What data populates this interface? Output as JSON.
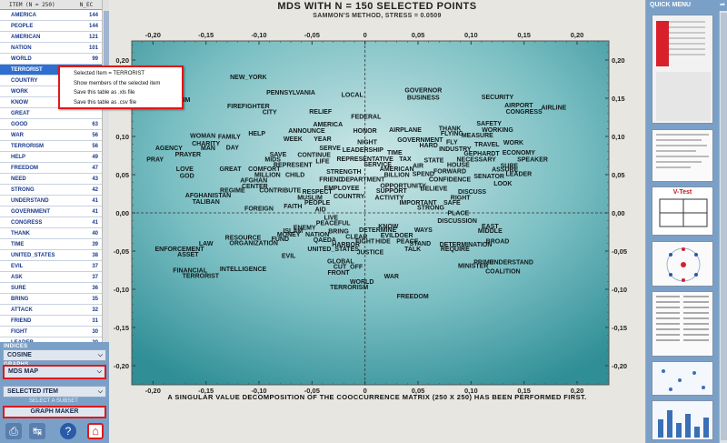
{
  "table": {
    "header_item": "ITEM (N = 250)",
    "header_n": "N_EC",
    "rows": [
      {
        "word": "AMERICA",
        "n": "144"
      },
      {
        "word": "PEOPLE",
        "n": "144"
      },
      {
        "word": "AMERICAN",
        "n": "121"
      },
      {
        "word": "NATION",
        "n": "101"
      },
      {
        "word": "WORLD",
        "n": "99"
      },
      {
        "word": "TERRORIST",
        "n": ""
      },
      {
        "word": "COUNTRY",
        "n": ""
      },
      {
        "word": "WORK",
        "n": ""
      },
      {
        "word": "KNOW",
        "n": ""
      },
      {
        "word": "GREAT",
        "n": ""
      },
      {
        "word": "GOOD",
        "n": "63"
      },
      {
        "word": "WAR",
        "n": "56"
      },
      {
        "word": "TERRORISM",
        "n": "56"
      },
      {
        "word": "HELP",
        "n": "49"
      },
      {
        "word": "FREEDOM",
        "n": "47"
      },
      {
        "word": "NEED",
        "n": "43"
      },
      {
        "word": "STRONG",
        "n": "42"
      },
      {
        "word": "UNDERSTAND",
        "n": "41"
      },
      {
        "word": "GOVERNMENT",
        "n": "41"
      },
      {
        "word": "CONGRESS",
        "n": "41"
      },
      {
        "word": "THANK",
        "n": "40"
      },
      {
        "word": "TIME",
        "n": "39"
      },
      {
        "word": "UNITED_STATES",
        "n": "38"
      },
      {
        "word": "EVIL",
        "n": "37"
      },
      {
        "word": "ASK",
        "n": "37"
      },
      {
        "word": "SURE",
        "n": "36"
      },
      {
        "word": "BRING",
        "n": "35"
      },
      {
        "word": "ATTACK",
        "n": "32"
      },
      {
        "word": "FRIEND",
        "n": "31"
      },
      {
        "word": "FIGHT",
        "n": "30"
      },
      {
        "word": "LEADER",
        "n": "30"
      },
      {
        "word": "CITIZEN",
        "n": "29"
      }
    ]
  },
  "context_menu": {
    "items": [
      "Selected Item = TERRORIST",
      "Show members of the selected item",
      "Save this table as .xls file",
      "Save this table as .csv file"
    ]
  },
  "controls": {
    "indices_label": "INDICES",
    "index_value": "COSINE",
    "graph_label": "GRAPHS",
    "graph_value": "MDS MAP",
    "items_label": "ITEMS",
    "items_value": "SELECTED ITEM",
    "select_subset_label": "SELECT A SUBSET",
    "graph_maker": "GRAPH MAKER"
  },
  "chart_header": {
    "title": "MDS WITH N = 150 SELECTED POINTS",
    "subtitle": "SAMMON'S METHOD,  STRESS = 0.0509"
  },
  "footnote": "A SINGULAR VALUE DECOMPOSITION OF THE COOCCURRENCE MATRIX (250 X 250) HAS BEEN PERFORMED FIRST.",
  "right_panel": {
    "title": "QUICK MENU",
    "vtest_label": "V-Test"
  },
  "colors": {
    "plot_bg_center": "#cfe8e8",
    "plot_bg_edge": "#2f8e96",
    "panel_blue": "#7aa0c8",
    "highlight_red": "#e01818",
    "selected_row": "#2f6fd0"
  },
  "chart_data": {
    "type": "scatter",
    "title": "MDS WITH N = 150 SELECTED POINTS",
    "xlim": [
      -0.22,
      0.23
    ],
    "ylim": [
      -0.225,
      0.225
    ],
    "xticks": [
      "-0,20",
      "-0,15",
      "-0,10",
      "-0,05",
      "0",
      "0,05",
      "0,10",
      "0,15",
      "0,20"
    ],
    "xtick_values": [
      -0.2,
      -0.15,
      -0.1,
      -0.05,
      0,
      0.05,
      0.1,
      0.15,
      0.2
    ],
    "yticks": [
      "0,20",
      "0,15",
      "0,10",
      "0,05",
      "0,00",
      "-0,05",
      "-0,10",
      "-0,15",
      "-0,20"
    ],
    "ytick_values": [
      0.2,
      0.15,
      0.1,
      0.05,
      0,
      -0.05,
      -0.1,
      -0.15,
      -0.2
    ],
    "points": [
      {
        "label": "NEW_YORK",
        "x": -0.11,
        "y": 0.175
      },
      {
        "label": "PENNSYLVANIA",
        "x": -0.07,
        "y": 0.155
      },
      {
        "label": "LOCAL",
        "x": -0.012,
        "y": 0.152
      },
      {
        "label": "GOVERNOR",
        "x": 0.055,
        "y": 0.158
      },
      {
        "label": "BUSINESS",
        "x": 0.055,
        "y": 0.148
      },
      {
        "label": "SECURITY",
        "x": 0.125,
        "y": 0.149
      },
      {
        "label": "AIRPORT",
        "x": 0.145,
        "y": 0.138
      },
      {
        "label": "AIRLINE",
        "x": 0.178,
        "y": 0.135
      },
      {
        "label": "CONGRESS",
        "x": 0.15,
        "y": 0.13
      },
      {
        "label": "VICTIM",
        "x": -0.175,
        "y": 0.145
      },
      {
        "label": "FIREFIGHTER",
        "x": -0.11,
        "y": 0.137
      },
      {
        "label": "CITY",
        "x": -0.09,
        "y": 0.129
      },
      {
        "label": "RELIEF",
        "x": -0.042,
        "y": 0.13
      },
      {
        "label": "FEDERAL",
        "x": 0.001,
        "y": 0.123
      },
      {
        "label": "SAFETY",
        "x": 0.117,
        "y": 0.114
      },
      {
        "label": "AMERICA",
        "x": -0.035,
        "y": 0.113
      },
      {
        "label": "THANK",
        "x": 0.08,
        "y": 0.108
      },
      {
        "label": "WORKING",
        "x": 0.125,
        "y": 0.106
      },
      {
        "label": "ANNOUNCE",
        "x": -0.055,
        "y": 0.105
      },
      {
        "label": "HONOR",
        "x": 0.0,
        "y": 0.105
      },
      {
        "label": "AIRPLANE",
        "x": 0.038,
        "y": 0.106
      },
      {
        "label": "FLYING",
        "x": 0.082,
        "y": 0.101
      },
      {
        "label": "MEASURE",
        "x": 0.106,
        "y": 0.099
      },
      {
        "label": "HELP",
        "x": -0.102,
        "y": 0.101
      },
      {
        "label": "FAMILY",
        "x": -0.128,
        "y": 0.097
      },
      {
        "label": "WOMAN",
        "x": -0.153,
        "y": 0.098
      },
      {
        "label": "WEEK",
        "x": -0.068,
        "y": 0.094
      },
      {
        "label": "YEAR",
        "x": -0.04,
        "y": 0.094
      },
      {
        "label": "GOVERNMENT",
        "x": 0.052,
        "y": 0.093
      },
      {
        "label": "FLY",
        "x": 0.082,
        "y": 0.09
      },
      {
        "label": "NIGHT",
        "x": 0.002,
        "y": 0.09
      },
      {
        "label": "HARD",
        "x": 0.06,
        "y": 0.086
      },
      {
        "label": "TRAVEL",
        "x": 0.115,
        "y": 0.087
      },
      {
        "label": "WORK",
        "x": 0.14,
        "y": 0.089
      },
      {
        "label": "INDUSTRY",
        "x": 0.085,
        "y": 0.081
      },
      {
        "label": "CHARITY",
        "x": -0.15,
        "y": 0.088
      },
      {
        "label": "AGENCY",
        "x": -0.185,
        "y": 0.082
      },
      {
        "label": "MAN",
        "x": -0.148,
        "y": 0.082
      },
      {
        "label": "DAY",
        "x": -0.125,
        "y": 0.083
      },
      {
        "label": "SERVE",
        "x": -0.033,
        "y": 0.082
      },
      {
        "label": "LEADERSHIP",
        "x": -0.002,
        "y": 0.08
      },
      {
        "label": "TIME",
        "x": 0.028,
        "y": 0.076
      },
      {
        "label": "GEPHARDT",
        "x": 0.11,
        "y": 0.075
      },
      {
        "label": "ECONOMY",
        "x": 0.145,
        "y": 0.076
      },
      {
        "label": "PRAYER",
        "x": -0.167,
        "y": 0.074
      },
      {
        "label": "SAVE",
        "x": -0.082,
        "y": 0.074
      },
      {
        "label": "CONTINUE",
        "x": -0.048,
        "y": 0.073
      },
      {
        "label": "REPRESENTATIVE",
        "x": 0.0,
        "y": 0.068
      },
      {
        "label": "TAX",
        "x": 0.038,
        "y": 0.068
      },
      {
        "label": "STATE",
        "x": 0.065,
        "y": 0.066
      },
      {
        "label": "NECESSARY",
        "x": 0.105,
        "y": 0.067
      },
      {
        "label": "SPEAKER",
        "x": 0.158,
        "y": 0.067
      },
      {
        "label": "PRAY",
        "x": -0.198,
        "y": 0.067
      },
      {
        "label": "MIDS",
        "x": -0.087,
        "y": 0.067
      },
      {
        "label": "LIFE",
        "x": -0.04,
        "y": 0.065
      },
      {
        "label": "SERVICE",
        "x": 0.012,
        "y": 0.061
      },
      {
        "label": "AIR",
        "x": 0.05,
        "y": 0.059
      },
      {
        "label": "HOUSE",
        "x": 0.088,
        "y": 0.06
      },
      {
        "label": "SURE",
        "x": 0.136,
        "y": 0.059
      },
      {
        "label": "REPRESENT",
        "x": -0.068,
        "y": 0.06
      },
      {
        "label": "COMFORT",
        "x": -0.095,
        "y": 0.055
      },
      {
        "label": "AMERICAN",
        "x": 0.03,
        "y": 0.055
      },
      {
        "label": "FORWARD",
        "x": 0.08,
        "y": 0.052
      },
      {
        "label": "ASSURE",
        "x": 0.132,
        "y": 0.054
      },
      {
        "label": "LOVE",
        "x": -0.17,
        "y": 0.055
      },
      {
        "label": "GREAT",
        "x": -0.127,
        "y": 0.055
      },
      {
        "label": "STRENGTH",
        "x": -0.02,
        "y": 0.051
      },
      {
        "label": "SPEND",
        "x": 0.055,
        "y": 0.048
      },
      {
        "label": "BILLION",
        "x": 0.03,
        "y": 0.047
      },
      {
        "label": "LEADER",
        "x": 0.145,
        "y": 0.048
      },
      {
        "label": "GOD",
        "x": -0.168,
        "y": 0.046
      },
      {
        "label": "MILLION",
        "x": -0.092,
        "y": 0.047
      },
      {
        "label": "CHILD",
        "x": -0.066,
        "y": 0.047
      },
      {
        "label": "SENATOR",
        "x": 0.117,
        "y": 0.045
      },
      {
        "label": "FRIEND",
        "x": -0.032,
        "y": 0.041
      },
      {
        "label": "DEPARTMENT",
        "x": -0.002,
        "y": 0.041
      },
      {
        "label": "CONFIDENCE",
        "x": 0.08,
        "y": 0.041
      },
      {
        "label": "AFGHAN",
        "x": -0.105,
        "y": 0.04
      },
      {
        "label": "LOOK",
        "x": 0.13,
        "y": 0.036
      },
      {
        "label": "CENTER",
        "x": -0.104,
        "y": 0.032
      },
      {
        "label": "OPPORTUNITY",
        "x": 0.036,
        "y": 0.033
      },
      {
        "label": "EMPLOYEE",
        "x": -0.022,
        "y": 0.03
      },
      {
        "label": "BELIEVE",
        "x": 0.065,
        "y": 0.029
      },
      {
        "label": "REGIME",
        "x": -0.125,
        "y": 0.027
      },
      {
        "label": "CONTRIBUTE",
        "x": -0.08,
        "y": 0.027
      },
      {
        "label": "RESPECT",
        "x": -0.045,
        "y": 0.025
      },
      {
        "label": "SUPPORT",
        "x": 0.025,
        "y": 0.026
      },
      {
        "label": "DISCUSS",
        "x": 0.101,
        "y": 0.025
      },
      {
        "label": "AFGHANISTAN",
        "x": -0.148,
        "y": 0.02
      },
      {
        "label": "MUSLIM",
        "x": -0.052,
        "y": 0.017
      },
      {
        "label": "COUNTRY",
        "x": -0.015,
        "y": 0.019
      },
      {
        "label": "ACTIVITY",
        "x": 0.023,
        "y": 0.017
      },
      {
        "label": "RIGHT",
        "x": 0.09,
        "y": 0.017
      },
      {
        "label": "TALIBAN",
        "x": -0.15,
        "y": 0.012
      },
      {
        "label": "PEOPLE",
        "x": -0.045,
        "y": 0.011
      },
      {
        "label": "IMPORTANT",
        "x": 0.05,
        "y": 0.011
      },
      {
        "label": "SAFE",
        "x": 0.082,
        "y": 0.011
      },
      {
        "label": "FAITH",
        "x": -0.068,
        "y": 0.006
      },
      {
        "label": "AID",
        "x": -0.042,
        "y": 0.002
      },
      {
        "label": "FOREIGN",
        "x": -0.1,
        "y": 0.003
      },
      {
        "label": "STRONG",
        "x": 0.062,
        "y": 0.004
      },
      {
        "label": "PLACE",
        "x": 0.088,
        "y": -0.003
      },
      {
        "label": "LIVE",
        "x": -0.032,
        "y": -0.009
      },
      {
        "label": "DISCUSSION",
        "x": 0.087,
        "y": -0.013
      },
      {
        "label": "PEACEFUL",
        "x": -0.03,
        "y": -0.016
      },
      {
        "label": "KNOW",
        "x": 0.022,
        "y": -0.02
      },
      {
        "label": "EAST",
        "x": 0.118,
        "y": -0.02
      },
      {
        "label": "ENEMY",
        "x": -0.057,
        "y": -0.022
      },
      {
        "label": "DETERMINE",
        "x": 0.012,
        "y": -0.025
      },
      {
        "label": "WAYS",
        "x": 0.055,
        "y": -0.025
      },
      {
        "label": "MIDDLE",
        "x": 0.118,
        "y": -0.026
      },
      {
        "label": "ISLAM",
        "x": -0.068,
        "y": -0.026
      },
      {
        "label": "BRING",
        "x": -0.025,
        "y": -0.027
      },
      {
        "label": "MONEY",
        "x": -0.072,
        "y": -0.031
      },
      {
        "label": "NATION",
        "x": -0.045,
        "y": -0.031
      },
      {
        "label": "EVILDOER",
        "x": 0.03,
        "y": -0.032
      },
      {
        "label": "CLEAR",
        "x": -0.008,
        "y": -0.034
      },
      {
        "label": "RESOURCE",
        "x": -0.115,
        "y": -0.035
      },
      {
        "label": "FUND",
        "x": -0.08,
        "y": -0.037
      },
      {
        "label": "QAEDA",
        "x": -0.038,
        "y": -0.038
      },
      {
        "label": "FIGHT",
        "x": 0.0,
        "y": -0.04
      },
      {
        "label": "HIDE",
        "x": 0.017,
        "y": -0.04
      },
      {
        "label": "PEACE",
        "x": 0.04,
        "y": -0.04
      },
      {
        "label": "BROAD",
        "x": 0.125,
        "y": -0.04
      },
      {
        "label": "ORGANIZATION",
        "x": -0.105,
        "y": -0.042
      },
      {
        "label": "LAW",
        "x": -0.15,
        "y": -0.043
      },
      {
        "label": "STAND",
        "x": 0.052,
        "y": -0.043
      },
      {
        "label": "DETERMINATION",
        "x": 0.095,
        "y": -0.044
      },
      {
        "label": "HARBOR",
        "x": -0.018,
        "y": -0.044
      },
      {
        "label": "TALK",
        "x": 0.045,
        "y": -0.05
      },
      {
        "label": "REQUIRE",
        "x": 0.085,
        "y": -0.05
      },
      {
        "label": "UNITED_STATES",
        "x": -0.03,
        "y": -0.05
      },
      {
        "label": "ENFORCEMENT",
        "x": -0.175,
        "y": -0.05
      },
      {
        "label": "JUSTICE",
        "x": 0.005,
        "y": -0.054
      },
      {
        "label": "ASSET",
        "x": -0.167,
        "y": -0.057
      },
      {
        "label": "EVIL",
        "x": -0.072,
        "y": -0.059
      },
      {
        "label": "GLOBAL",
        "x": -0.023,
        "y": -0.066
      },
      {
        "label": "PRIME",
        "x": 0.112,
        "y": -0.067
      },
      {
        "label": "UNDERSTAND",
        "x": 0.138,
        "y": -0.067
      },
      {
        "label": "CUT_OFF",
        "x": -0.016,
        "y": -0.073
      },
      {
        "label": "MINISTER",
        "x": 0.102,
        "y": -0.072
      },
      {
        "label": "INTELLIGENCE",
        "x": -0.115,
        "y": -0.076
      },
      {
        "label": "FINANCIAL",
        "x": -0.165,
        "y": -0.078
      },
      {
        "label": "COALITION",
        "x": 0.13,
        "y": -0.079
      },
      {
        "label": "FRONT",
        "x": -0.025,
        "y": -0.081
      },
      {
        "label": "TERRORIST",
        "x": -0.155,
        "y": -0.085
      },
      {
        "label": "WAR",
        "x": 0.025,
        "y": -0.086
      },
      {
        "label": "WORLD",
        "x": -0.003,
        "y": -0.093
      },
      {
        "label": "TERRORISM",
        "x": -0.015,
        "y": -0.1
      },
      {
        "label": "FREEDOM",
        "x": 0.045,
        "y": -0.112
      }
    ]
  }
}
